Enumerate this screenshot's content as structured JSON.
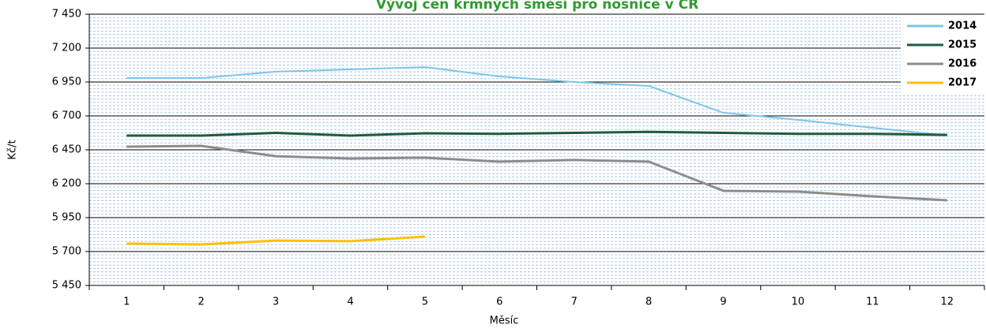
{
  "chart_data": {
    "type": "line",
    "title": "Vývoj cen krmných směsí pro nosnice v ČR",
    "x_label": "Měsíc",
    "y_label": "Kč/t",
    "categories": [
      "1",
      "2",
      "3",
      "4",
      "5",
      "6",
      "7",
      "8",
      "9",
      "10",
      "11",
      "12"
    ],
    "series": [
      {
        "name": "2014",
        "color": "#7ec4e8",
        "values": [
          6979,
          6979,
          7026,
          7043,
          7060,
          6991,
          6950,
          6921,
          6723,
          6671,
          6613,
          6555
        ]
      },
      {
        "name": "2015",
        "color": "#1f5b3d",
        "values": [
          6555,
          6555,
          6575,
          6555,
          6572,
          6568,
          6575,
          6582,
          6575,
          6568,
          6568,
          6560
        ]
      },
      {
        "name": "2016",
        "color": "#8c8c8c",
        "values": [
          6473,
          6479,
          6403,
          6386,
          6392,
          6363,
          6375,
          6363,
          6148,
          6142,
          6107,
          6078
        ]
      },
      {
        "name": "2017",
        "color": "#ffc000",
        "values": [
          5758,
          5752,
          5781,
          5776,
          5810,
          null,
          null,
          null,
          null,
          null,
          null,
          null
        ]
      }
    ],
    "ylim": [
      5450,
      7450
    ],
    "yticks": [
      {
        "value": 5450,
        "label": "5 450"
      },
      {
        "value": 5700,
        "label": "5 700"
      },
      {
        "value": 5950,
        "label": "5 950"
      },
      {
        "value": 6200,
        "label": "6 200"
      },
      {
        "value": 6450,
        "label": "6 450"
      },
      {
        "value": 6700,
        "label": "6 700"
      },
      {
        "value": 6950,
        "label": "6 950"
      },
      {
        "value": 7200,
        "label": "7 200"
      },
      {
        "value": 7450,
        "label": "7 450"
      }
    ],
    "grid": true,
    "minor_grid_step": 25,
    "legend": "upper right"
  }
}
